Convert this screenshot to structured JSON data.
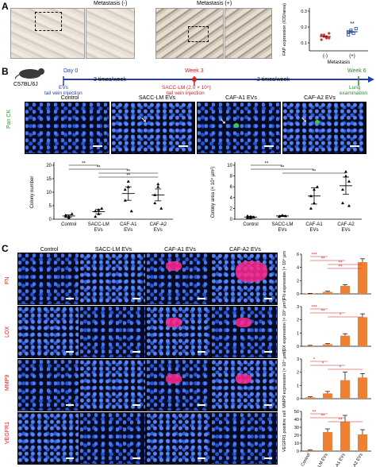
{
  "panel_a": {
    "letter": "A",
    "left_label": "Metastasis (-)",
    "right_label": "Metastasis (+)",
    "ylabel": "FAP expression (IOD/area)",
    "xticks": [
      "(-)",
      "(+)"
    ],
    "xlabel": "Metastasis",
    "significance": "**"
  },
  "panel_b": {
    "letter": "B",
    "mouse_label": "C57BL/6J",
    "day0": "Day 0",
    "week3": "Week 3",
    "week6": "Week 6",
    "evs_injection": "EVs\ntail vein injection",
    "evs_label": "EVs",
    "tail_label": "tail vein injection",
    "freq1": "3 times/week",
    "freq2": "2 times/week",
    "sacc_injection_line1": "SACC-LM (2.0 × 10⁵)",
    "sacc_injection_line2": "tail vein injection",
    "lung_line1": "Lung",
    "lung_line2": "examination",
    "row_label": "Pan CK",
    "columns": [
      "Control",
      "SACC-LM EVs",
      "CAF-A1 EVs",
      "CAF-A2 EVs"
    ],
    "chart1_ylabel": "Colony number",
    "chart2_ylabel": "Colony area (× 10⁴ μm²)",
    "xticks": [
      [
        "Control"
      ],
      [
        "SACC-LM",
        "EVs"
      ],
      [
        "CAF-A1",
        "EVs"
      ],
      [
        "CAF-A2",
        "EVs"
      ]
    ]
  },
  "panel_c": {
    "letter": "C",
    "columns": [
      "Control",
      "SACC-LM EVs",
      "CAF-A1 EVs",
      "CAF-A2 EVs"
    ],
    "rows": [
      "FN",
      "LOX",
      "MMP9",
      "VEGFR1"
    ],
    "xticks": [
      "Control",
      "SACC-LM EVs",
      "CAF-A1 EVs",
      "CAF-A2 EVs"
    ]
  },
  "chart_data": [
    {
      "type": "scatter",
      "id": "a-fap",
      "categories": [
        "(-)",
        "(+)"
      ],
      "ylabel": "FAP expression (IOD/area)",
      "xlabel": "Metastasis",
      "yticks": [
        0.1,
        0.2,
        0.3
      ],
      "ylim": [
        0.05,
        0.32
      ],
      "series": [
        {
          "values": [
            0.15,
            0.14,
            0.13,
            0.16,
            0.12,
            0.15,
            0.14,
            0.13
          ],
          "color": "#e03030"
        },
        {
          "values": [
            0.17,
            0.18,
            0.16,
            0.19,
            0.15,
            0.17
          ],
          "color": "#2050c0"
        }
      ]
    },
    {
      "type": "scatter",
      "id": "b-colony-number",
      "categories": [
        "Control",
        "SACC-LM EVs",
        "CAF-A1 EVs",
        "CAF-A2 EVs"
      ],
      "ylabel": "Colony number",
      "yticks": [
        0,
        5,
        10,
        15,
        20
      ],
      "ylim": [
        0,
        20
      ],
      "means": [
        1.2,
        2.8,
        9.5,
        9.0
      ],
      "sem": [
        0.4,
        0.8,
        2.5,
        2.2
      ],
      "points": [
        [
          1,
          0.5,
          2,
          1.5,
          1
        ],
        [
          3,
          2,
          4,
          1,
          3.5
        ],
        [
          7,
          14,
          3,
          11,
          12
        ],
        [
          6,
          13,
          4,
          9,
          12
        ]
      ],
      "significance": [
        "**",
        "**",
        "**",
        "**"
      ]
    },
    {
      "type": "scatter",
      "id": "b-colony-area",
      "categories": [
        "Control",
        "SACC-LM EVs",
        "CAF-A1 EVs",
        "CAF-A2 EVs"
      ],
      "ylabel": "Colony area (× 10⁴ μm²)",
      "yticks": [
        0,
        2,
        4,
        6,
        8,
        10
      ],
      "ylim": [
        0,
        10
      ],
      "means": [
        0.4,
        0.6,
        4.3,
        6.2
      ],
      "sem": [
        0.15,
        0.1,
        1.5,
        1.6
      ],
      "points": [
        [
          0.3,
          0.5,
          0.4,
          0.6,
          0.2
        ],
        [
          0.5,
          0.7,
          0.6,
          0.5,
          0.7
        ],
        [
          2,
          5.5,
          6,
          4.3,
          3
        ],
        [
          3,
          8.8,
          7,
          5.5,
          8,
          2.5
        ]
      ],
      "significance": [
        "**",
        "**",
        "**"
      ]
    },
    {
      "type": "bar",
      "id": "c-fn",
      "categories": [
        "Control",
        "SACC-LM EVs",
        "CAF-A1 EVs",
        "CAF-A2 EVs"
      ],
      "ylabel": "FN expression (× 10⁴ μm²)",
      "yticks": [
        0,
        2,
        4,
        6
      ],
      "ylim": [
        0,
        6
      ],
      "values": [
        0.05,
        0.3,
        1.2,
        4.8
      ],
      "errors": [
        0.03,
        0.1,
        0.2,
        0.5
      ],
      "significance": [
        "***",
        "**",
        "**",
        "**"
      ]
    },
    {
      "type": "bar",
      "id": "c-lox",
      "categories": [
        "Control",
        "SACC-LM EVs",
        "CAF-A1 EVs",
        "CAF-A2 EVs"
      ],
      "ylabel": "LOX expression (× 10⁴ μm²)",
      "yticks": [
        0,
        1,
        2,
        3
      ],
      "ylim": [
        0,
        3
      ],
      "values": [
        0.05,
        0.15,
        0.8,
        2.2
      ],
      "errors": [
        0.02,
        0.05,
        0.15,
        0.25
      ],
      "significance": [
        "***",
        "**",
        "*"
      ]
    },
    {
      "type": "bar",
      "id": "c-mmp9",
      "categories": [
        "Control",
        "SACC-LM EVs",
        "CAF-A1 EVs",
        "CAF-A2 EVs"
      ],
      "ylabel": "MMP9 expression (× 10⁴ μm²)",
      "yticks": [
        0,
        1,
        2,
        3
      ],
      "ylim": [
        0,
        3
      ],
      "values": [
        0.1,
        0.4,
        1.4,
        1.6
      ],
      "errors": [
        0.05,
        0.15,
        0.6,
        0.3
      ],
      "significance": [
        "*",
        "*",
        "*"
      ]
    },
    {
      "type": "bar",
      "id": "c-vegfr1",
      "categories": [
        "Control",
        "SACC-LM EVs",
        "CAF-A1 EVs",
        "CAF-A2 EVs"
      ],
      "ylabel": "VEGFR1 positive cell",
      "yticks": [
        0,
        10,
        20,
        30,
        40,
        50
      ],
      "ylim": [
        0,
        50
      ],
      "values": [
        1,
        24,
        37,
        21
      ],
      "errors": [
        0.5,
        4,
        8,
        6
      ],
      "significance": [
        "**",
        "**",
        "**"
      ]
    }
  ]
}
